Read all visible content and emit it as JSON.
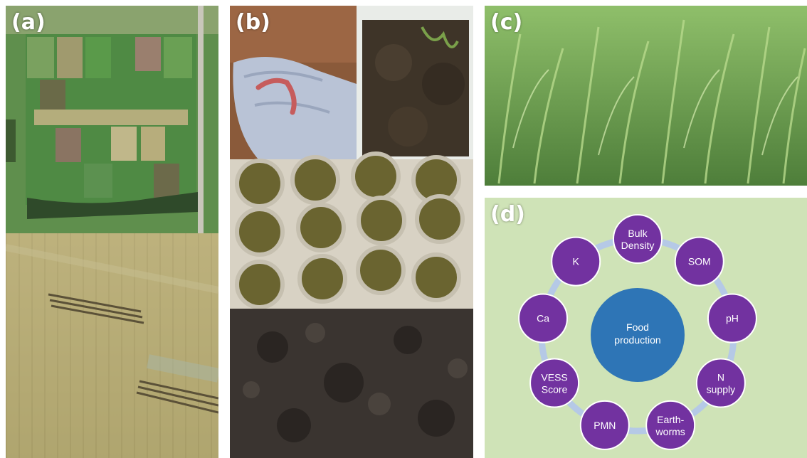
{
  "panels": {
    "a": {
      "label": "(a)"
    },
    "b": {
      "label": "(b)"
    },
    "c": {
      "label": "(c)"
    },
    "d": {
      "label": "(d)"
    }
  },
  "diagram": {
    "center": {
      "line1": "Food",
      "line2": "production"
    },
    "nodes": [
      {
        "line1": "Bulk",
        "line2": "Density"
      },
      {
        "line1": "SOM",
        "line2": ""
      },
      {
        "line1": "pH",
        "line2": ""
      },
      {
        "line1": "N",
        "line2": "supply"
      },
      {
        "line1": "Earth-",
        "line2": "worms"
      },
      {
        "line1": "PMN",
        "line2": ""
      },
      {
        "line1": "VESS",
        "line2": "Score"
      },
      {
        "line1": "Ca",
        "line2": ""
      },
      {
        "line1": "K",
        "line2": ""
      }
    ],
    "colors": {
      "background": "#cfe3b7",
      "ring": "#b5c9e6",
      "node": "#7232a0",
      "node_stroke": "#ffffff",
      "center": "#2e75b6"
    }
  }
}
